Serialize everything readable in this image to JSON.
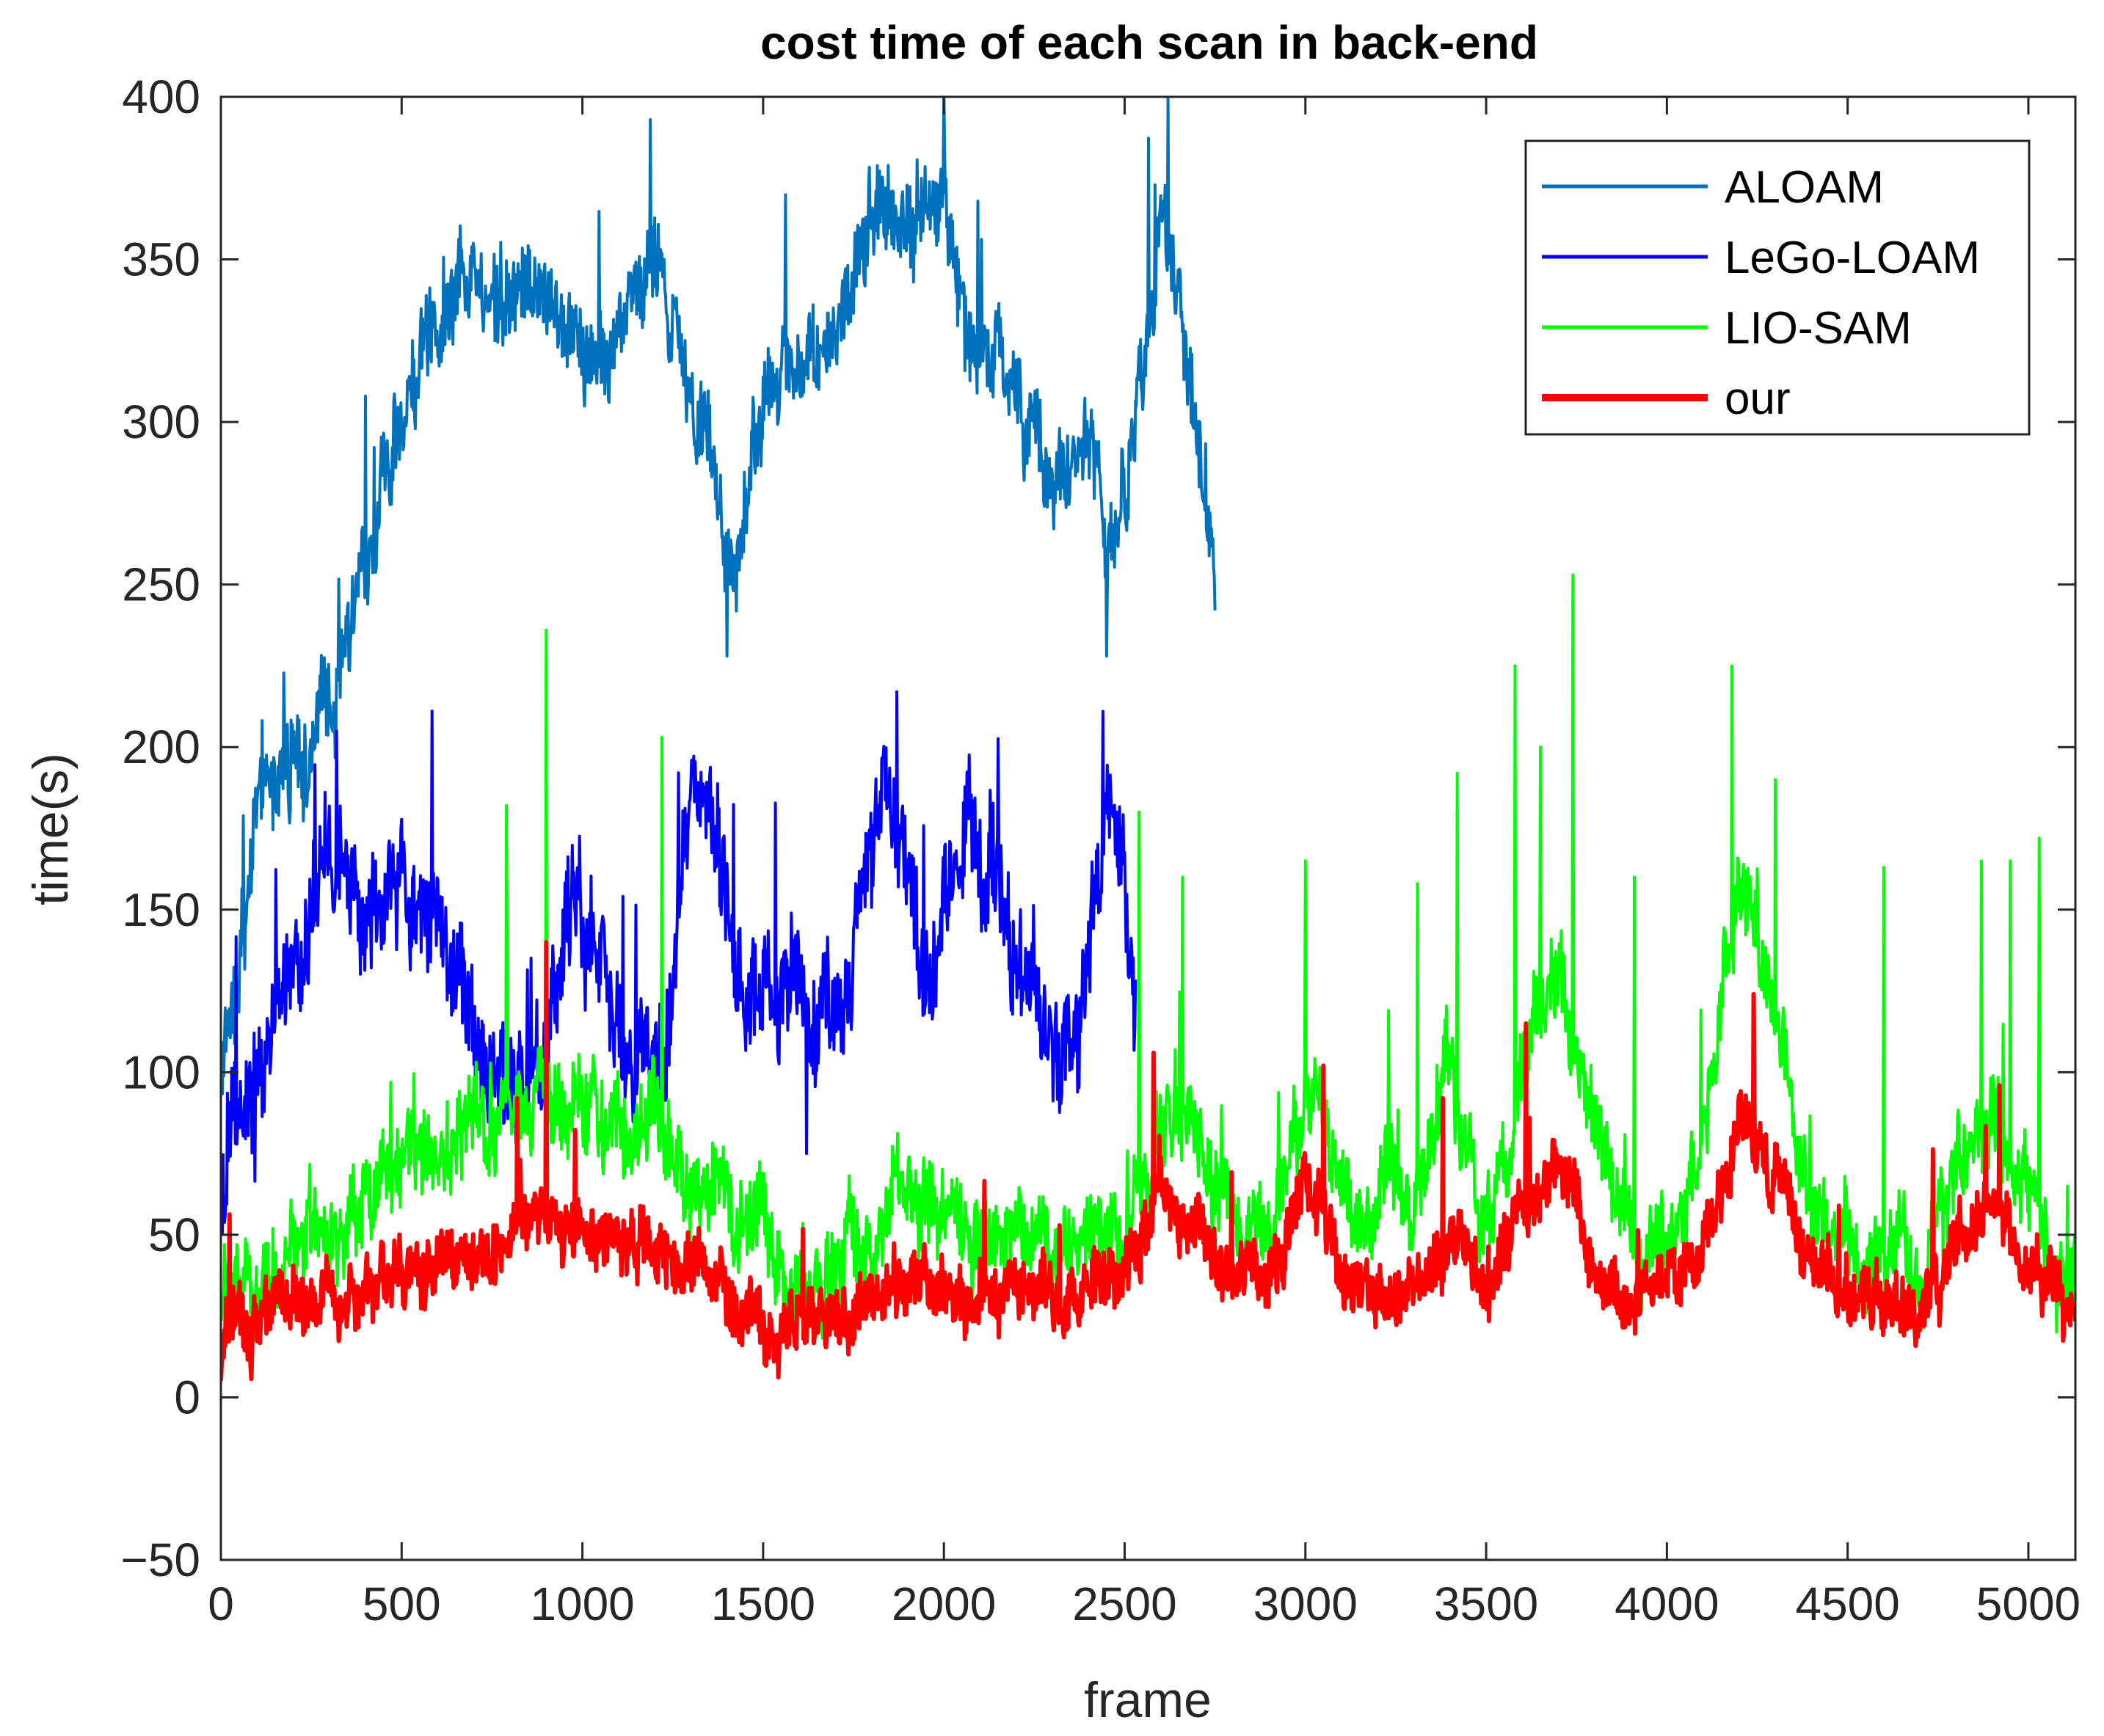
{
  "chart_data": {
    "type": "line",
    "title": "cost time of each scan in back-end",
    "xlabel": "frame",
    "ylabel": "time(s)",
    "xlim": [
      0,
      5130
    ],
    "ylim": [
      -50,
      400
    ],
    "xticks": [
      0,
      500,
      1000,
      1500,
      2000,
      2500,
      3000,
      3500,
      4000,
      4500,
      5000
    ],
    "yticks": [
      -50,
      0,
      50,
      100,
      150,
      200,
      250,
      300,
      350,
      400
    ],
    "xtick_labels": [
      "0",
      "500",
      "1000",
      "1500",
      "2000",
      "2500",
      "3000",
      "3500",
      "4000",
      "4500",
      "5000"
    ],
    "ytick_labels": [
      "−50",
      "0",
      "50",
      "100",
      "150",
      "200",
      "250",
      "300",
      "350",
      "400"
    ],
    "grid": false,
    "legend_position": "top-right",
    "series": [
      {
        "name": "ALOAM",
        "color": "#0072BD",
        "frames": [
          0,
          2750
        ],
        "trend": [
          [
            0,
            100
          ],
          [
            50,
            140
          ],
          [
            100,
            175
          ],
          [
            150,
            190
          ],
          [
            200,
            195
          ],
          [
            250,
            200
          ],
          [
            300,
            215
          ],
          [
            350,
            230
          ],
          [
            400,
            255
          ],
          [
            450,
            280
          ],
          [
            500,
            305
          ],
          [
            550,
            325
          ],
          [
            600,
            335
          ],
          [
            650,
            345
          ],
          [
            700,
            350
          ],
          [
            750,
            345
          ],
          [
            800,
            335
          ],
          [
            850,
            345
          ],
          [
            900,
            340
          ],
          [
            950,
            330
          ],
          [
            1000,
            320
          ],
          [
            1050,
            315
          ],
          [
            1100,
            320
          ],
          [
            1150,
            345
          ],
          [
            1200,
            345
          ],
          [
            1250,
            320
          ],
          [
            1300,
            310
          ],
          [
            1350,
            300
          ],
          [
            1400,
            250
          ],
          [
            1450,
            270
          ],
          [
            1500,
            295
          ],
          [
            1550,
            320
          ],
          [
            1600,
            320
          ],
          [
            1650,
            315
          ],
          [
            1700,
            330
          ],
          [
            1750,
            345
          ],
          [
            1800,
            360
          ],
          [
            1850,
            365
          ],
          [
            1900,
            365
          ],
          [
            1950,
            375
          ],
          [
            2000,
            370
          ],
          [
            2050,
            330
          ],
          [
            2100,
            315
          ],
          [
            2150,
            325
          ],
          [
            2200,
            305
          ],
          [
            2250,
            290
          ],
          [
            2300,
            275
          ],
          [
            2350,
            285
          ],
          [
            2400,
            300
          ],
          [
            2450,
            255
          ],
          [
            2500,
            280
          ],
          [
            2550,
            320
          ],
          [
            2600,
            355
          ],
          [
            2650,
            330
          ],
          [
            2700,
            295
          ],
          [
            2750,
            260
          ]
        ],
        "noise_amplitude": 15,
        "spikes": [
          [
            1400,
            228
          ],
          [
            2000,
            402
          ],
          [
            2620,
            400
          ],
          [
            2450,
            228
          ],
          [
            2750,
            242
          ]
        ]
      },
      {
        "name": "LeGo-LOAM",
        "color": "#0000FF",
        "frames": [
          0,
          2530
        ],
        "trend": [
          [
            0,
            60
          ],
          [
            30,
            80
          ],
          [
            60,
            95
          ],
          [
            100,
            100
          ],
          [
            150,
            115
          ],
          [
            200,
            130
          ],
          [
            250,
            150
          ],
          [
            300,
            165
          ],
          [
            350,
            160
          ],
          [
            400,
            150
          ],
          [
            450,
            155
          ],
          [
            500,
            160
          ],
          [
            550,
            150
          ],
          [
            600,
            140
          ],
          [
            650,
            130
          ],
          [
            700,
            115
          ],
          [
            750,
            105
          ],
          [
            800,
            95
          ],
          [
            850,
            95
          ],
          [
            900,
            110
          ],
          [
            950,
            135
          ],
          [
            1000,
            145
          ],
          [
            1050,
            140
          ],
          [
            1100,
            120
          ],
          [
            1150,
            100
          ],
          [
            1200,
            90
          ],
          [
            1250,
            130
          ],
          [
            1300,
            175
          ],
          [
            1350,
            180
          ],
          [
            1400,
            155
          ],
          [
            1450,
            120
          ],
          [
            1500,
            130
          ],
          [
            1550,
            135
          ],
          [
            1600,
            130
          ],
          [
            1650,
            115
          ],
          [
            1700,
            125
          ],
          [
            1750,
            140
          ],
          [
            1800,
            170
          ],
          [
            1850,
            190
          ],
          [
            1900,
            165
          ],
          [
            1950,
            130
          ],
          [
            2000,
            150
          ],
          [
            2050,
            165
          ],
          [
            2100,
            160
          ],
          [
            2150,
            155
          ],
          [
            2200,
            140
          ],
          [
            2250,
            130
          ],
          [
            2300,
            105
          ],
          [
            2350,
            105
          ],
          [
            2400,
            145
          ],
          [
            2450,
            180
          ],
          [
            2500,
            165
          ],
          [
            2530,
            125
          ]
        ],
        "noise_amplitude": 18,
        "spikes": [
          [
            320,
            205
          ],
          [
            1870,
            217
          ],
          [
            2440,
            211
          ],
          [
            1620,
            75
          ]
        ]
      },
      {
        "name": "LIO-SAM",
        "color": "#00FF00",
        "frames": [
          0,
          5130
        ],
        "trend": [
          [
            0,
            32
          ],
          [
            100,
            35
          ],
          [
            200,
            42
          ],
          [
            300,
            50
          ],
          [
            400,
            60
          ],
          [
            500,
            70
          ],
          [
            600,
            75
          ],
          [
            700,
            85
          ],
          [
            800,
            90
          ],
          [
            900,
            95
          ],
          [
            1000,
            90
          ],
          [
            1100,
            85
          ],
          [
            1200,
            85
          ],
          [
            1300,
            65
          ],
          [
            1400,
            60
          ],
          [
            1500,
            48
          ],
          [
            1600,
            38
          ],
          [
            1700,
            38
          ],
          [
            1800,
            48
          ],
          [
            1900,
            70
          ],
          [
            2000,
            55
          ],
          [
            2100,
            48
          ],
          [
            2200,
            45
          ],
          [
            2300,
            48
          ],
          [
            2400,
            48
          ],
          [
            2500,
            50
          ],
          [
            2600,
            85
          ],
          [
            2700,
            75
          ],
          [
            2800,
            60
          ],
          [
            2900,
            50
          ],
          [
            3000,
            95
          ],
          [
            3100,
            70
          ],
          [
            3200,
            55
          ],
          [
            3300,
            55
          ],
          [
            3400,
            110
          ],
          [
            3500,
            50
          ],
          [
            3600,
            100
          ],
          [
            3700,
            130
          ],
          [
            3800,
            80
          ],
          [
            3900,
            50
          ],
          [
            4000,
            45
          ],
          [
            4100,
            75
          ],
          [
            4200,
            160
          ],
          [
            4300,
            120
          ],
          [
            4400,
            60
          ],
          [
            4500,
            45
          ],
          [
            4600,
            40
          ],
          [
            4700,
            40
          ],
          [
            4800,
            70
          ],
          [
            4900,
            90
          ],
          [
            5000,
            55
          ],
          [
            5100,
            40
          ],
          [
            5130,
            38
          ]
        ],
        "noise_amplitude": 14,
        "spikes": [
          [
            900,
            236
          ],
          [
            1220,
            203
          ],
          [
            790,
            182
          ],
          [
            2540,
            180
          ],
          [
            3740,
            253
          ],
          [
            3650,
            200
          ],
          [
            3580,
            225
          ],
          [
            4180,
            225
          ],
          [
            4300,
            190
          ],
          [
            3420,
            192
          ],
          [
            3000,
            165
          ],
          [
            5030,
            172
          ],
          [
            4950,
            165
          ],
          [
            4870,
            165
          ],
          [
            4600,
            163
          ],
          [
            2660,
            160
          ],
          [
            3310,
            158
          ],
          [
            3910,
            160
          ]
        ]
      },
      {
        "name": "our",
        "color": "#FF0000",
        "frames": [
          0,
          5130
        ],
        "trend": [
          [
            0,
            10
          ],
          [
            30,
            22
          ],
          [
            100,
            25
          ],
          [
            200,
            28
          ],
          [
            300,
            32
          ],
          [
            400,
            35
          ],
          [
            500,
            38
          ],
          [
            600,
            40
          ],
          [
            700,
            45
          ],
          [
            800,
            50
          ],
          [
            900,
            55
          ],
          [
            1000,
            48
          ],
          [
            1100,
            45
          ],
          [
            1200,
            45
          ],
          [
            1300,
            40
          ],
          [
            1400,
            35
          ],
          [
            1500,
            25
          ],
          [
            1600,
            20
          ],
          [
            1700,
            22
          ],
          [
            1800,
            30
          ],
          [
            1900,
            38
          ],
          [
            2000,
            32
          ],
          [
            2100,
            30
          ],
          [
            2200,
            32
          ],
          [
            2300,
            32
          ],
          [
            2400,
            35
          ],
          [
            2500,
            40
          ],
          [
            2600,
            65
          ],
          [
            2700,
            50
          ],
          [
            2800,
            40
          ],
          [
            2900,
            38
          ],
          [
            3000,
            65
          ],
          [
            3100,
            40
          ],
          [
            3200,
            30
          ],
          [
            3300,
            35
          ],
          [
            3400,
            50
          ],
          [
            3500,
            30
          ],
          [
            3600,
            55
          ],
          [
            3700,
            75
          ],
          [
            3800,
            45
          ],
          [
            3900,
            30
          ],
          [
            4000,
            33
          ],
          [
            4100,
            45
          ],
          [
            4200,
            85
          ],
          [
            4300,
            70
          ],
          [
            4400,
            40
          ],
          [
            4500,
            30
          ],
          [
            4600,
            30
          ],
          [
            4700,
            30
          ],
          [
            4800,
            45
          ],
          [
            4900,
            60
          ],
          [
            5000,
            40
          ],
          [
            5100,
            30
          ],
          [
            5130,
            28
          ]
        ],
        "noise_amplitude": 10,
        "spikes": [
          [
            900,
            140
          ],
          [
            4240,
            124
          ],
          [
            3610,
            115
          ],
          [
            2580,
            106
          ],
          [
            3050,
            102
          ],
          [
            4920,
            96
          ],
          [
            3380,
            92
          ],
          [
            820,
            92
          ]
        ]
      }
    ]
  }
}
